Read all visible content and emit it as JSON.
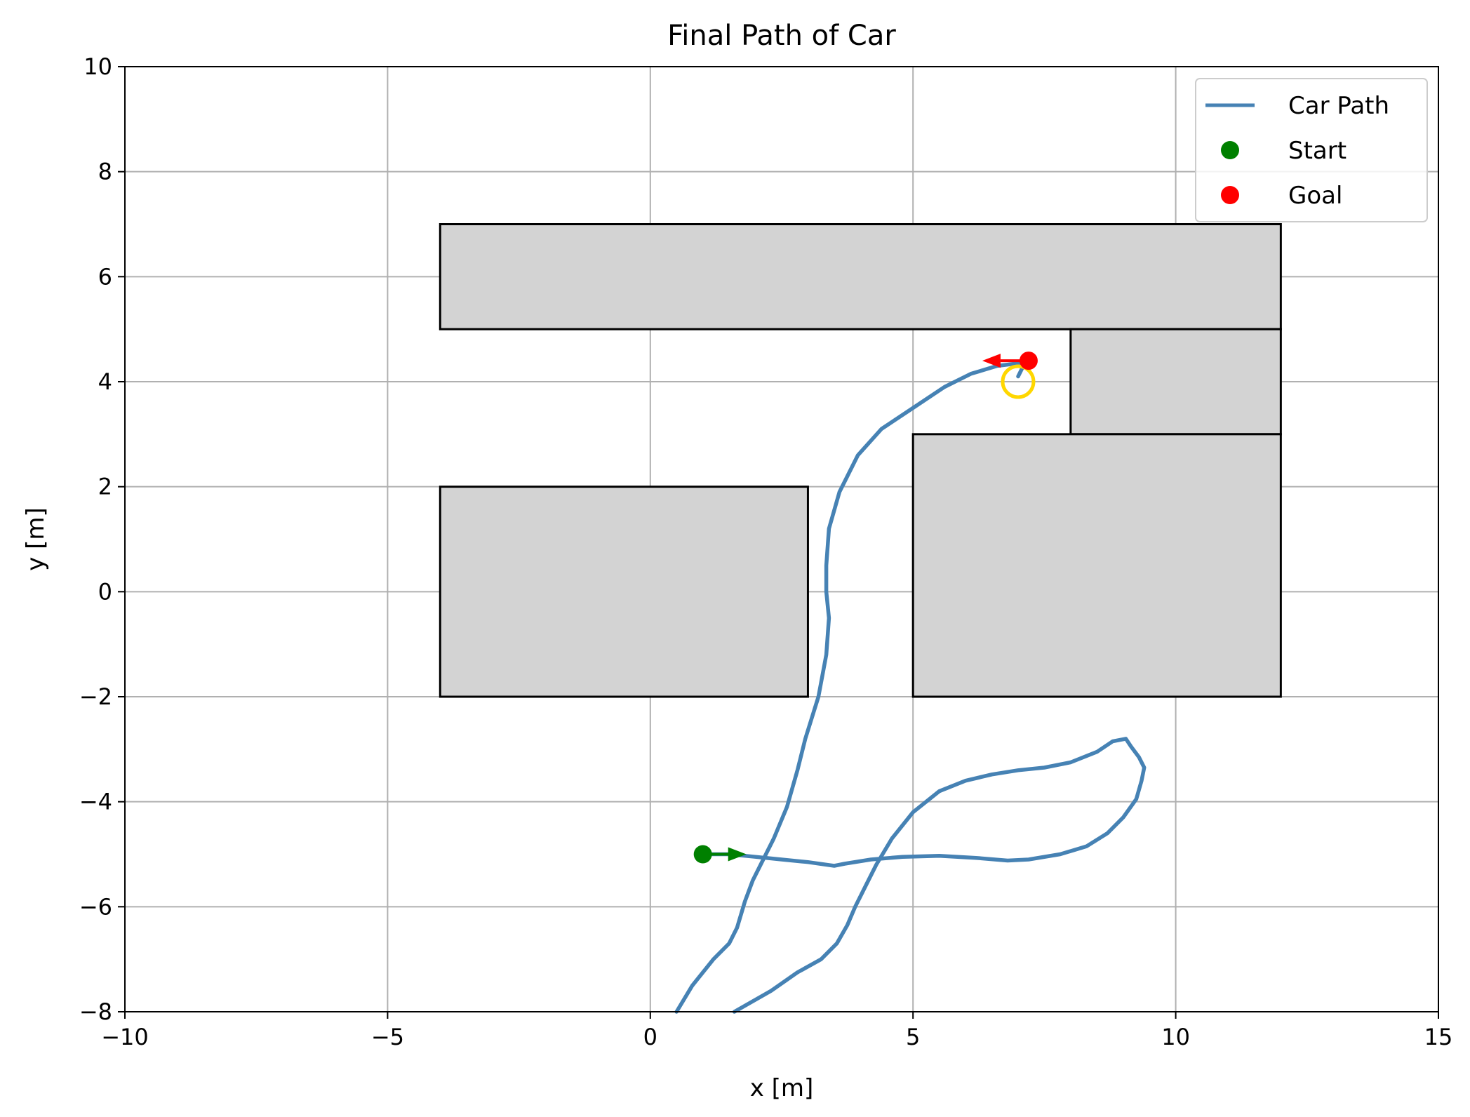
{
  "chart_data": {
    "type": "line",
    "title": "Final Path of Car",
    "xlabel": "x [m]",
    "ylabel": "y [m]",
    "xlim": [
      -10,
      15
    ],
    "ylim": [
      -8,
      10
    ],
    "xticks": [
      -10,
      -5,
      0,
      5,
      10,
      15
    ],
    "yticks": [
      -8,
      -6,
      -4,
      -2,
      0,
      2,
      4,
      6,
      8,
      10
    ],
    "xtick_labels": [
      "−10",
      "−5",
      "0",
      "5",
      "10",
      "15"
    ],
    "ytick_labels": [
      "−8",
      "−6",
      "−4",
      "−2",
      "0",
      "2",
      "4",
      "6",
      "8",
      "10"
    ],
    "grid": true,
    "legend_position": "upper right",
    "legend": [
      {
        "label": "Car Path",
        "marker": "line",
        "color": "#4682b4"
      },
      {
        "label": "Start",
        "marker": "dot",
        "color": "#008000"
      },
      {
        "label": "Goal",
        "marker": "dot",
        "color": "#ff0000"
      }
    ],
    "obstacles": [
      {
        "x": -4,
        "y": 5,
        "width": 16,
        "height": 2
      },
      {
        "x": 8,
        "y": 3,
        "width": 4,
        "height": 2
      },
      {
        "x": 5,
        "y": -2,
        "width": 7,
        "height": 5
      },
      {
        "x": -4,
        "y": -2,
        "width": 7,
        "height": 4
      }
    ],
    "obstacle_color": "#d3d3d3",
    "series": [
      {
        "name": "Car Path",
        "color": "#4682b4",
        "points": [
          [
            1.0,
            -5.0
          ],
          [
            1.5,
            -5.0
          ],
          [
            2.0,
            -5.05
          ],
          [
            2.5,
            -5.1
          ],
          [
            3.0,
            -5.15
          ],
          [
            3.5,
            -5.22
          ],
          [
            3.7,
            -5.18
          ],
          [
            4.2,
            -5.1
          ],
          [
            4.8,
            -5.05
          ],
          [
            5.5,
            -5.03
          ],
          [
            6.2,
            -5.07
          ],
          [
            6.8,
            -5.12
          ],
          [
            7.2,
            -5.1
          ],
          [
            7.8,
            -5.0
          ],
          [
            8.3,
            -4.85
          ],
          [
            8.7,
            -4.6
          ],
          [
            9.0,
            -4.3
          ],
          [
            9.25,
            -3.95
          ],
          [
            9.35,
            -3.6
          ],
          [
            9.4,
            -3.35
          ],
          [
            9.3,
            -3.15
          ],
          [
            9.15,
            -2.95
          ],
          [
            9.05,
            -2.8
          ],
          [
            8.8,
            -2.85
          ],
          [
            8.5,
            -3.05
          ],
          [
            8.0,
            -3.25
          ],
          [
            7.5,
            -3.35
          ],
          [
            7.0,
            -3.4
          ],
          [
            6.5,
            -3.48
          ],
          [
            6.0,
            -3.6
          ],
          [
            5.5,
            -3.8
          ],
          [
            5.0,
            -4.2
          ],
          [
            4.6,
            -4.7
          ],
          [
            4.3,
            -5.2
          ],
          [
            4.1,
            -5.6
          ],
          [
            3.9,
            -6.0
          ],
          [
            3.75,
            -6.35
          ],
          [
            3.55,
            -6.7
          ],
          [
            3.25,
            -7.0
          ],
          [
            2.8,
            -7.25
          ],
          [
            2.3,
            -7.6
          ],
          [
            1.6,
            -8.0
          ]
        ]
      },
      {
        "name": "",
        "color": "#4682b4",
        "points": [
          [
            0.5,
            -8.0
          ],
          [
            0.8,
            -7.5
          ],
          [
            1.2,
            -7.0
          ],
          [
            1.5,
            -6.7
          ],
          [
            1.65,
            -6.4
          ],
          [
            1.8,
            -5.9
          ],
          [
            1.95,
            -5.5
          ],
          [
            2.1,
            -5.2
          ],
          [
            2.35,
            -4.7
          ],
          [
            2.6,
            -4.1
          ],
          [
            2.8,
            -3.4
          ],
          [
            2.95,
            -2.8
          ],
          [
            3.2,
            -2.0
          ],
          [
            3.35,
            -1.2
          ],
          [
            3.4,
            -0.5
          ],
          [
            3.35,
            0.0
          ],
          [
            3.35,
            0.5
          ],
          [
            3.4,
            1.2
          ],
          [
            3.6,
            1.9
          ],
          [
            3.95,
            2.6
          ],
          [
            4.4,
            3.1
          ],
          [
            5.0,
            3.5
          ],
          [
            5.6,
            3.9
          ],
          [
            6.1,
            4.15
          ],
          [
            6.6,
            4.3
          ],
          [
            7.0,
            4.35
          ],
          [
            7.3,
            4.4
          ],
          [
            7.1,
            4.3
          ],
          [
            7.0,
            4.1
          ]
        ]
      }
    ],
    "start": {
      "x": 1.0,
      "y": -5.0,
      "heading": "right",
      "color": "#008000"
    },
    "goal": {
      "x": 7.2,
      "y": 4.4,
      "heading": "left",
      "color": "#ff0000"
    },
    "goal_region": {
      "x": 7.0,
      "y": 4.0,
      "color": "#ffd700"
    }
  }
}
